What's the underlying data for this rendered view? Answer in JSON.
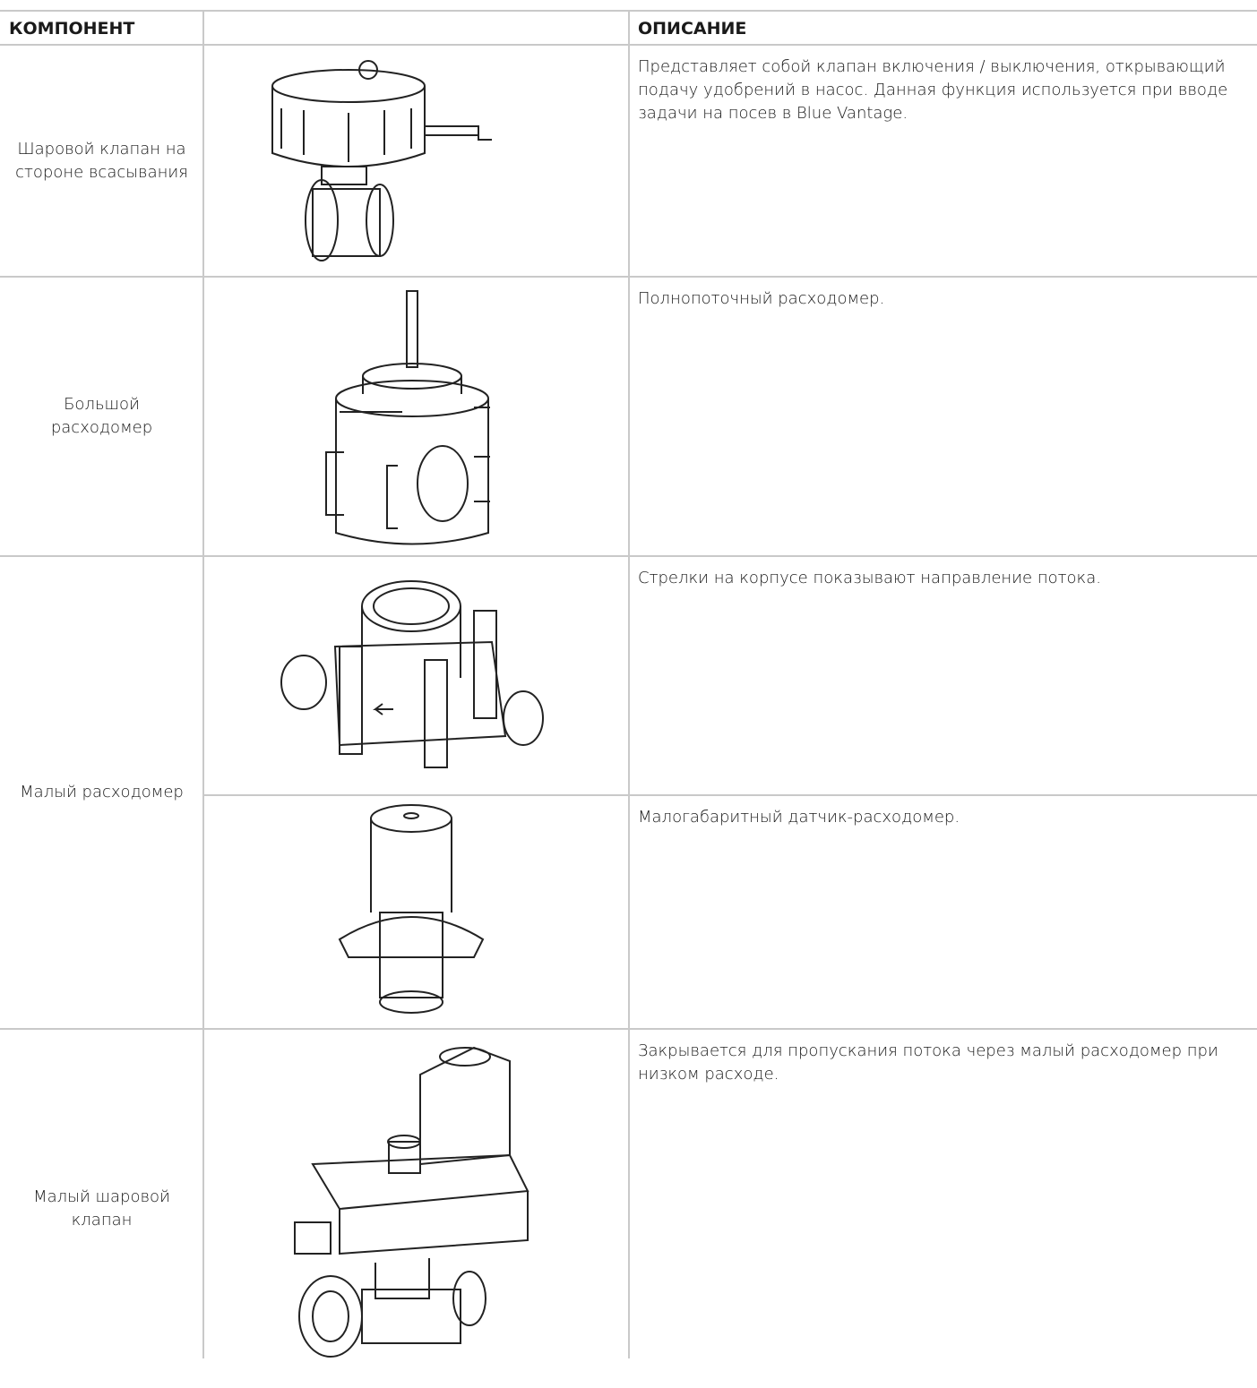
{
  "table": {
    "header": {
      "component": "КОМПОНЕНТ",
      "description": "ОПИСАНИЕ"
    },
    "rows": [
      {
        "component": "Шаровой клапан на стороне всасывания",
        "items": [
          "Представляет собой клапан включения / выключения, открывающий подачу удобрений в насос. Данная функция используется при вводе задачи на посев в Blue Vantage."
        ]
      },
      {
        "component": "Большой расходомер",
        "items": [
          "Полнопоточный расходомер."
        ]
      },
      {
        "component": "Малый расходомер",
        "items": [
          "Стрелки на корпусе показывают направление потока.",
          "Малогабаритный датчик-расходомер."
        ]
      },
      {
        "component": "Малый шаровой клапан",
        "items": [
          "Закрывается для пропускания потока через малый расходомер при низком расходе."
        ]
      }
    ]
  }
}
